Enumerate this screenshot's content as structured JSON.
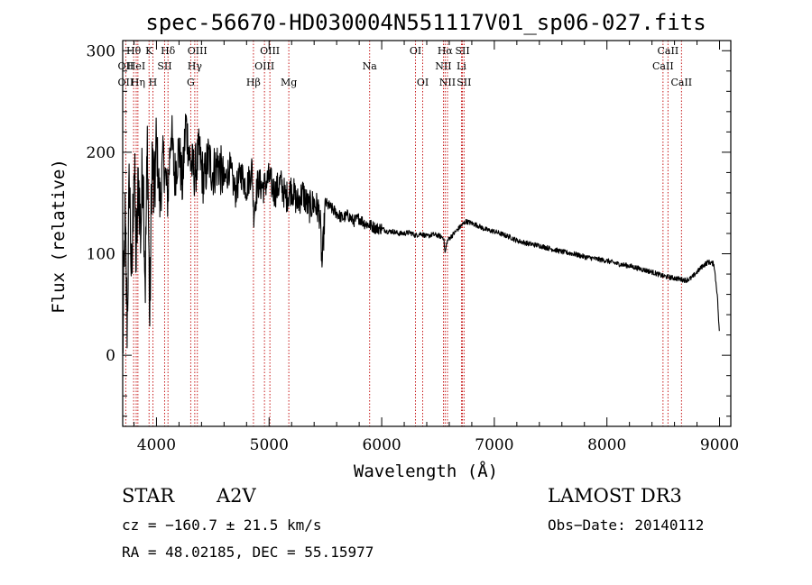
{
  "chart_data": {
    "type": "line",
    "title": "spec-56670-HD030004N551117V01_sp06-027.fits",
    "xlabel": "Wavelength (Å)",
    "ylabel": "Flux (relative)",
    "xlim": [
      3700,
      9100
    ],
    "ylim": [
      -70,
      310
    ],
    "xticks": [
      4000,
      5000,
      6000,
      7000,
      8000,
      9000
    ],
    "yticks": [
      0,
      100,
      200,
      300
    ],
    "x_tick_labels": [
      "4000",
      "5000",
      "6000",
      "7000",
      "8000",
      "9000"
    ],
    "y_tick_labels": [
      "0",
      "100",
      "200",
      "300"
    ],
    "series": [
      {
        "name": "spectrum",
        "x": [
          3700,
          3720,
          3740,
          3760,
          3780,
          3800,
          3820,
          3840,
          3860,
          3880,
          3900,
          3920,
          3940,
          3960,
          3980,
          4000,
          4030,
          4060,
          4100,
          4130,
          4160,
          4200,
          4230,
          4260,
          4300,
          4340,
          4380,
          4420,
          4460,
          4500,
          4550,
          4600,
          4650,
          4700,
          4750,
          4800,
          4850,
          4862,
          4900,
          4950,
          5000,
          5050,
          5100,
          5150,
          5200,
          5250,
          5300,
          5350,
          5400,
          5450,
          5470,
          5500,
          5550,
          5600,
          5650,
          5700,
          5750,
          5800,
          5850,
          5900,
          5950,
          6000,
          6050,
          6100,
          6150,
          6200,
          6250,
          6300,
          6350,
          6400,
          6450,
          6500,
          6550,
          6563,
          6580,
          6600,
          6650,
          6700,
          6750,
          6800,
          6850,
          6900,
          6950,
          7000,
          7050,
          7100,
          7150,
          7200,
          7300,
          7400,
          7500,
          7600,
          7700,
          7800,
          7900,
          8000,
          8100,
          8200,
          8300,
          8400,
          8500,
          8550,
          8600,
          8650,
          8700,
          8750,
          8800,
          8850,
          8900,
          8950,
          8980,
          9000
        ],
        "values": [
          0,
          130,
          30,
          180,
          60,
          200,
          90,
          175,
          120,
          200,
          70,
          215,
          30,
          200,
          150,
          210,
          150,
          195,
          155,
          225,
          175,
          205,
          165,
          230,
          190,
          180,
          200,
          170,
          195,
          180,
          190,
          170,
          185,
          160,
          180,
          165,
          185,
          140,
          170,
          165,
          175,
          160,
          170,
          155,
          165,
          150,
          160,
          145,
          150,
          140,
          88,
          150,
          145,
          140,
          135,
          138,
          132,
          135,
          130,
          128,
          125,
          125,
          122,
          122,
          120,
          120,
          121,
          118,
          120,
          117,
          119,
          118,
          116,
          100,
          112,
          115,
          121,
          127,
          132,
          130,
          128,
          125,
          123,
          122,
          120,
          118,
          116,
          113,
          110,
          108,
          105,
          102,
          100,
          97,
          95,
          93,
          90,
          88,
          85,
          82,
          78,
          77,
          76,
          75,
          74,
          76,
          82,
          88,
          92,
          90,
          60,
          18
        ]
      }
    ],
    "lines": [
      {
        "label": "OII",
        "wavelength": 3727,
        "row": 2
      },
      {
        "label": "OII",
        "wavelength": 3727,
        "row": 3
      },
      {
        "label": "Hθ",
        "wavelength": 3797,
        "row": 1
      },
      {
        "label": "HeI",
        "wavelength": 3820,
        "row": 2
      },
      {
        "label": "Hη",
        "wavelength": 3835,
        "row": 3
      },
      {
        "label": "K",
        "wavelength": 3934,
        "row": 1
      },
      {
        "label": "SII",
        "wavelength": 4072,
        "row": 2
      },
      {
        "label": "H",
        "wavelength": 3968,
        "row": 3
      },
      {
        "label": "Hδ",
        "wavelength": 4102,
        "row": 1
      },
      {
        "label": "OIII",
        "wavelength": 4363,
        "row": 1
      },
      {
        "label": "Hγ",
        "wavelength": 4340,
        "row": 2
      },
      {
        "label": "G",
        "wavelength": 4304,
        "row": 3
      },
      {
        "label": "Hβ",
        "wavelength": 4861,
        "row": 3
      },
      {
        "label": "OIII",
        "wavelength": 5007,
        "row": 1
      },
      {
        "label": "OIII",
        "wavelength": 4959,
        "row": 2
      },
      {
        "label": "Mg",
        "wavelength": 5175,
        "row": 3
      },
      {
        "label": "Na",
        "wavelength": 5893,
        "row": 2
      },
      {
        "label": "OI",
        "wavelength": 6300,
        "row": 1
      },
      {
        "label": "OI",
        "wavelength": 6364,
        "row": 3
      },
      {
        "label": "Hα",
        "wavelength": 6563,
        "row": 1
      },
      {
        "label": "NII",
        "wavelength": 6548,
        "row": 2
      },
      {
        "label": "NII",
        "wavelength": 6584,
        "row": 3
      },
      {
        "label": "SII",
        "wavelength": 6717,
        "row": 1
      },
      {
        "label": "Li",
        "wavelength": 6708,
        "row": 2
      },
      {
        "label": "SII",
        "wavelength": 6731,
        "row": 3
      },
      {
        "label": "CaII",
        "wavelength": 8542,
        "row": 1
      },
      {
        "label": "CaII",
        "wavelength": 8498,
        "row": 2
      },
      {
        "label": "CaII",
        "wavelength": 8662,
        "row": 3
      }
    ]
  },
  "info": {
    "object_class": "STAR",
    "subclass": "A2V",
    "survey": "LAMOST DR3",
    "cz": "cz = −160.7 ± 21.5 km/s",
    "obs_date": "Obs−Date: 20140112",
    "coords": "RA =  48.02185, DEC =  55.15977"
  },
  "colors": {
    "axis": "#000000",
    "spectrum": "#000000",
    "line_marker": "#c00000"
  }
}
